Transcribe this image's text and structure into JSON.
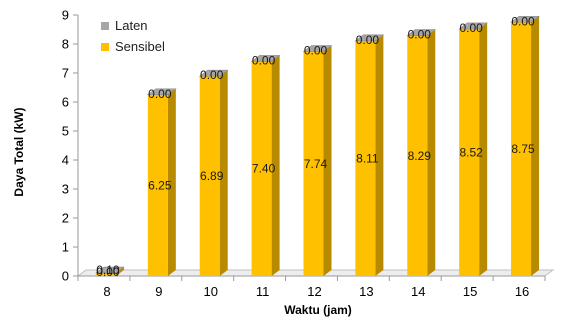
{
  "chart_data": {
    "type": "bar",
    "stacked": true,
    "three_d": true,
    "categories": [
      "8",
      "9",
      "10",
      "11",
      "12",
      "13",
      "14",
      "15",
      "16"
    ],
    "series": [
      {
        "name": "Laten",
        "color": "#a6a6a6",
        "values": [
          0,
          0,
          0,
          0,
          0,
          0,
          0,
          0,
          0
        ],
        "labels": [
          "0.00",
          "0.00",
          "0.00",
          "0.00",
          "0.00",
          "0.00",
          "0.00",
          "0.00",
          "0.00"
        ]
      },
      {
        "name": "Sensibel",
        "color": "#ffc000",
        "values": [
          0.1,
          6.25,
          6.89,
          7.4,
          7.74,
          8.11,
          8.29,
          8.52,
          8.75
        ],
        "labels": [
          "0.10",
          "6.25",
          "6.89",
          "7.40",
          "7.74",
          "8.11",
          "8.29",
          "8.52",
          "8.75"
        ]
      }
    ],
    "xlabel": "Waktu (jam)",
    "ylabel": "Daya Total (kW)",
    "ylim": [
      0,
      9
    ],
    "yticks": [
      0,
      1,
      2,
      3,
      4,
      5,
      6,
      7,
      8,
      9
    ],
    "grid": false,
    "legend_position": "top-left"
  }
}
